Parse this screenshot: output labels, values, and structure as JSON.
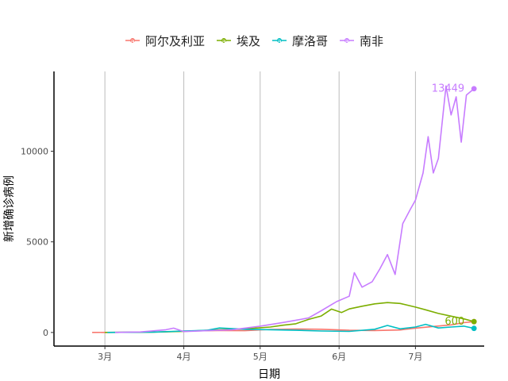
{
  "chart_data": {
    "type": "line",
    "xlabel": "日期",
    "ylabel": "新增确诊病例",
    "x_tick_labels": [
      "3月",
      "4月",
      "5月",
      "6月",
      "7月"
    ],
    "x_tick_dates": [
      "2020-03-01",
      "2020-04-01",
      "2020-05-01",
      "2020-06-01",
      "2020-07-01"
    ],
    "x_range": [
      "2020-02-10",
      "2020-07-28"
    ],
    "y_ticks": [
      0,
      5000,
      10000
    ],
    "ylim": [
      -750,
      14400
    ],
    "grid": "vertical major lines",
    "legend_position": "top",
    "series": [
      {
        "name": "阿尔及利亚",
        "color": "#F8766D",
        "points": [
          [
            "2020-02-25",
            1
          ],
          [
            "2020-03-15",
            10
          ],
          [
            "2020-03-25",
            40
          ],
          [
            "2020-04-05",
            90
          ],
          [
            "2020-04-15",
            110
          ],
          [
            "2020-04-25",
            100
          ],
          [
            "2020-05-05",
            170
          ],
          [
            "2020-05-15",
            190
          ],
          [
            "2020-05-25",
            180
          ],
          [
            "2020-06-05",
            120
          ],
          [
            "2020-06-15",
            110
          ],
          [
            "2020-06-25",
            140
          ],
          [
            "2020-07-01",
            240
          ],
          [
            "2020-07-08",
            330
          ],
          [
            "2020-07-15",
            420
          ],
          [
            "2020-07-20",
            540
          ],
          [
            "2020-07-24",
            600
          ]
        ],
        "end_label": ""
      },
      {
        "name": "埃及",
        "color": "#7CAE00",
        "points": [
          [
            "2020-03-01",
            1
          ],
          [
            "2020-03-20",
            20
          ],
          [
            "2020-04-01",
            60
          ],
          [
            "2020-04-15",
            150
          ],
          [
            "2020-04-25",
            200
          ],
          [
            "2020-05-05",
            300
          ],
          [
            "2020-05-10",
            400
          ],
          [
            "2020-05-15",
            480
          ],
          [
            "2020-05-20",
            720
          ],
          [
            "2020-05-25",
            910
          ],
          [
            "2020-05-29",
            1290
          ],
          [
            "2020-06-02",
            1100
          ],
          [
            "2020-06-05",
            1300
          ],
          [
            "2020-06-10",
            1450
          ],
          [
            "2020-06-15",
            1580
          ],
          [
            "2020-06-20",
            1650
          ],
          [
            "2020-06-25",
            1600
          ],
          [
            "2020-07-01",
            1400
          ],
          [
            "2020-07-05",
            1250
          ],
          [
            "2020-07-10",
            1050
          ],
          [
            "2020-07-15",
            900
          ],
          [
            "2020-07-20",
            750
          ],
          [
            "2020-07-24",
            600
          ]
        ],
        "end_label": "600"
      },
      {
        "name": "摩洛哥",
        "color": "#00BFC4",
        "points": [
          [
            "2020-03-02",
            1
          ],
          [
            "2020-03-20",
            20
          ],
          [
            "2020-04-01",
            80
          ],
          [
            "2020-04-10",
            120
          ],
          [
            "2020-04-15",
            250
          ],
          [
            "2020-04-25",
            180
          ],
          [
            "2020-05-05",
            150
          ],
          [
            "2020-05-15",
            120
          ],
          [
            "2020-05-25",
            80
          ],
          [
            "2020-06-05",
            60
          ],
          [
            "2020-06-15",
            180
          ],
          [
            "2020-06-20",
            390
          ],
          [
            "2020-06-25",
            200
          ],
          [
            "2020-07-01",
            300
          ],
          [
            "2020-07-05",
            450
          ],
          [
            "2020-07-10",
            250
          ],
          [
            "2020-07-15",
            300
          ],
          [
            "2020-07-20",
            350
          ],
          [
            "2020-07-24",
            226
          ]
        ],
        "end_label": ""
      },
      {
        "name": "南非",
        "color": "#C77CFF",
        "points": [
          [
            "2020-03-05",
            1
          ],
          [
            "2020-03-15",
            30
          ],
          [
            "2020-03-25",
            150
          ],
          [
            "2020-03-28",
            240
          ],
          [
            "2020-04-01",
            50
          ],
          [
            "2020-04-10",
            100
          ],
          [
            "2020-04-20",
            150
          ],
          [
            "2020-05-01",
            350
          ],
          [
            "2020-05-10",
            550
          ],
          [
            "2020-05-20",
            800
          ],
          [
            "2020-05-25",
            1200
          ],
          [
            "2020-05-31",
            1700
          ],
          [
            "2020-06-05",
            2000
          ],
          [
            "2020-06-07",
            3300
          ],
          [
            "2020-06-10",
            2500
          ],
          [
            "2020-06-14",
            2800
          ],
          [
            "2020-06-17",
            3500
          ],
          [
            "2020-06-20",
            4300
          ],
          [
            "2020-06-23",
            3200
          ],
          [
            "2020-06-26",
            6000
          ],
          [
            "2020-06-29",
            6800
          ],
          [
            "2020-07-01",
            7300
          ],
          [
            "2020-07-04",
            8800
          ],
          [
            "2020-07-06",
            10800
          ],
          [
            "2020-07-08",
            8800
          ],
          [
            "2020-07-10",
            9600
          ],
          [
            "2020-07-13",
            13600
          ],
          [
            "2020-07-15",
            12000
          ],
          [
            "2020-07-17",
            13000
          ],
          [
            "2020-07-19",
            10500
          ],
          [
            "2020-07-21",
            13100
          ],
          [
            "2020-07-24",
            13449
          ]
        ],
        "end_label": "13449"
      }
    ]
  }
}
